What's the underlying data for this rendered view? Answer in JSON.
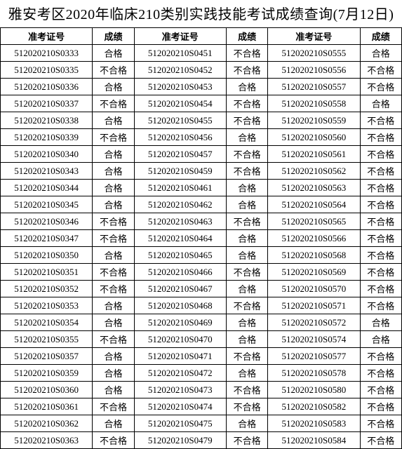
{
  "title": "雅安考区2020年临床210类别实践技能考试成绩查询(7月12日)",
  "headers": {
    "id": "准考证号",
    "res": "成绩"
  },
  "colors": {
    "background": "#ffffff",
    "text": "#000000",
    "border": "#000000"
  },
  "fontsize": {
    "title": 20,
    "cell": 13
  },
  "rows": [
    {
      "c1_id": "512020210S0333",
      "c1_res": "合格",
      "c2_id": "512020210S0451",
      "c2_res": "不合格",
      "c3_id": "512020210S0555",
      "c3_res": "合格"
    },
    {
      "c1_id": "512020210S0335",
      "c1_res": "不合格",
      "c2_id": "512020210S0452",
      "c2_res": "不合格",
      "c3_id": "512020210S0556",
      "c3_res": "不合格"
    },
    {
      "c1_id": "512020210S0336",
      "c1_res": "合格",
      "c2_id": "512020210S0453",
      "c2_res": "合格",
      "c3_id": "512020210S0557",
      "c3_res": "不合格"
    },
    {
      "c1_id": "512020210S0337",
      "c1_res": "不合格",
      "c2_id": "512020210S0454",
      "c2_res": "不合格",
      "c3_id": "512020210S0558",
      "c3_res": "合格"
    },
    {
      "c1_id": "512020210S0338",
      "c1_res": "合格",
      "c2_id": "512020210S0455",
      "c2_res": "不合格",
      "c3_id": "512020210S0559",
      "c3_res": "不合格"
    },
    {
      "c1_id": "512020210S0339",
      "c1_res": "不合格",
      "c2_id": "512020210S0456",
      "c2_res": "合格",
      "c3_id": "512020210S0560",
      "c3_res": "不合格"
    },
    {
      "c1_id": "512020210S0340",
      "c1_res": "合格",
      "c2_id": "512020210S0457",
      "c2_res": "不合格",
      "c3_id": "512020210S0561",
      "c3_res": "不合格"
    },
    {
      "c1_id": "512020210S0343",
      "c1_res": "合格",
      "c2_id": "512020210S0459",
      "c2_res": "不合格",
      "c3_id": "512020210S0562",
      "c3_res": "不合格"
    },
    {
      "c1_id": "512020210S0344",
      "c1_res": "合格",
      "c2_id": "512020210S0461",
      "c2_res": "合格",
      "c3_id": "512020210S0563",
      "c3_res": "不合格"
    },
    {
      "c1_id": "512020210S0345",
      "c1_res": "合格",
      "c2_id": "512020210S0462",
      "c2_res": "合格",
      "c3_id": "512020210S0564",
      "c3_res": "不合格"
    },
    {
      "c1_id": "512020210S0346",
      "c1_res": "不合格",
      "c2_id": "512020210S0463",
      "c2_res": "不合格",
      "c3_id": "512020210S0565",
      "c3_res": "不合格"
    },
    {
      "c1_id": "512020210S0347",
      "c1_res": "不合格",
      "c2_id": "512020210S0464",
      "c2_res": "合格",
      "c3_id": "512020210S0566",
      "c3_res": "不合格"
    },
    {
      "c1_id": "512020210S0350",
      "c1_res": "合格",
      "c2_id": "512020210S0465",
      "c2_res": "合格",
      "c3_id": "512020210S0568",
      "c3_res": "不合格"
    },
    {
      "c1_id": "512020210S0351",
      "c1_res": "不合格",
      "c2_id": "512020210S0466",
      "c2_res": "不合格",
      "c3_id": "512020210S0569",
      "c3_res": "不合格"
    },
    {
      "c1_id": "512020210S0352",
      "c1_res": "不合格",
      "c2_id": "512020210S0467",
      "c2_res": "合格",
      "c3_id": "512020210S0570",
      "c3_res": "不合格"
    },
    {
      "c1_id": "512020210S0353",
      "c1_res": "合格",
      "c2_id": "512020210S0468",
      "c2_res": "不合格",
      "c3_id": "512020210S0571",
      "c3_res": "不合格"
    },
    {
      "c1_id": "512020210S0354",
      "c1_res": "合格",
      "c2_id": "512020210S0469",
      "c2_res": "合格",
      "c3_id": "512020210S0572",
      "c3_res": "合格"
    },
    {
      "c1_id": "512020210S0355",
      "c1_res": "不合格",
      "c2_id": "512020210S0470",
      "c2_res": "合格",
      "c3_id": "512020210S0574",
      "c3_res": "合格"
    },
    {
      "c1_id": "512020210S0357",
      "c1_res": "合格",
      "c2_id": "512020210S0471",
      "c2_res": "不合格",
      "c3_id": "512020210S0577",
      "c3_res": "不合格"
    },
    {
      "c1_id": "512020210S0359",
      "c1_res": "合格",
      "c2_id": "512020210S0472",
      "c2_res": "合格",
      "c3_id": "512020210S0578",
      "c3_res": "不合格"
    },
    {
      "c1_id": "512020210S0360",
      "c1_res": "合格",
      "c2_id": "512020210S0473",
      "c2_res": "不合格",
      "c3_id": "512020210S0580",
      "c3_res": "不合格"
    },
    {
      "c1_id": "512020210S0361",
      "c1_res": "不合格",
      "c2_id": "512020210S0474",
      "c2_res": "不合格",
      "c3_id": "512020210S0582",
      "c3_res": "不合格"
    },
    {
      "c1_id": "512020210S0362",
      "c1_res": "合格",
      "c2_id": "512020210S0475",
      "c2_res": "合格",
      "c3_id": "512020210S0583",
      "c3_res": "不合格"
    },
    {
      "c1_id": "512020210S0363",
      "c1_res": "不合格",
      "c2_id": "512020210S0479",
      "c2_res": "不合格",
      "c3_id": "512020210S0584",
      "c3_res": "不合格"
    }
  ]
}
